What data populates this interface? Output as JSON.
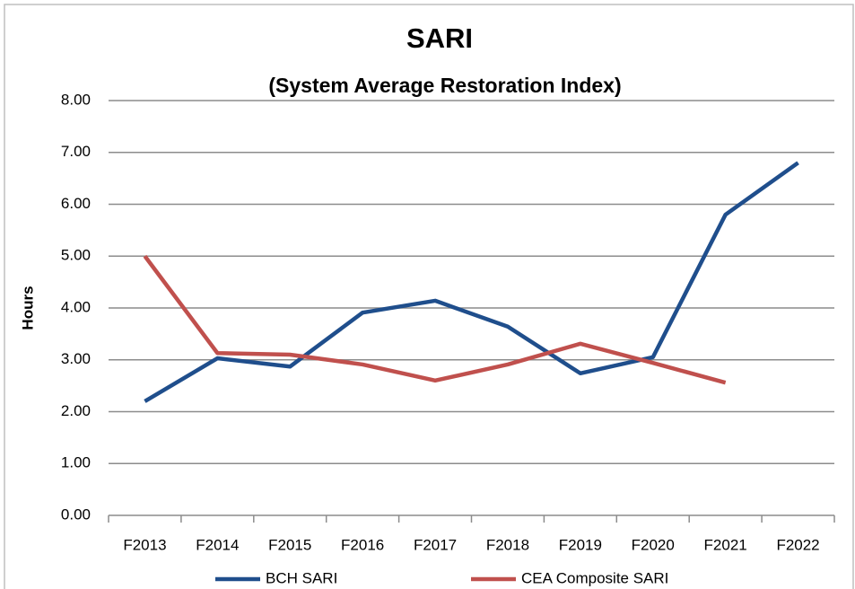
{
  "chart_data": {
    "type": "line",
    "title": "SARI",
    "subtitle": "(System Average Restoration Index)",
    "y_label": "Hours",
    "categories": [
      "F2013",
      "F2014",
      "F2015",
      "F2016",
      "F2017",
      "F2018",
      "F2019",
      "F2020",
      "F2021",
      "F2022"
    ],
    "series": [
      {
        "name": "BCH SARI",
        "color": "#1f4e8c",
        "values": [
          2.2,
          3.03,
          2.87,
          3.91,
          4.14,
          3.64,
          2.74,
          3.05,
          5.8,
          6.8
        ]
      },
      {
        "name": "CEA Composite SARI",
        "color": "#c0504d",
        "values": [
          5.0,
          3.13,
          3.1,
          2.91,
          2.6,
          2.91,
          3.31,
          2.94,
          2.56,
          null
        ]
      }
    ],
    "ylim": [
      0,
      8
    ],
    "yticks": [
      {
        "value": 0,
        "label": "0.00"
      },
      {
        "value": 1,
        "label": "1.00"
      },
      {
        "value": 2,
        "label": "2.00"
      },
      {
        "value": 3,
        "label": "3.00"
      },
      {
        "value": 4,
        "label": "4.00"
      },
      {
        "value": 5,
        "label": "5.00"
      },
      {
        "value": 6,
        "label": "6.00"
      },
      {
        "value": 7,
        "label": "7.00"
      },
      {
        "value": 8,
        "label": "8.00"
      }
    ],
    "grid": true,
    "legend": "bottom"
  }
}
